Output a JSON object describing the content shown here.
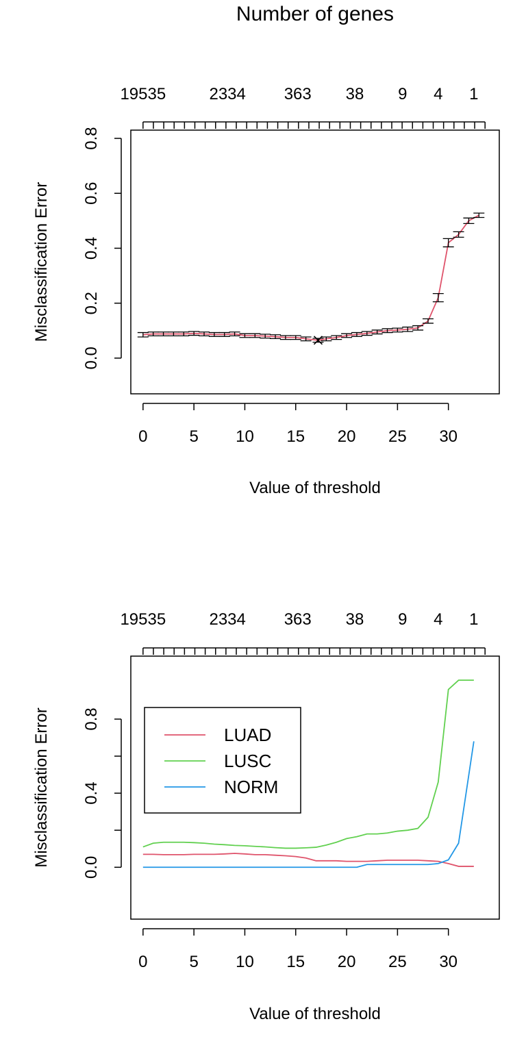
{
  "figure_title": "Number of genes",
  "chart_data": [
    {
      "type": "line",
      "title": "",
      "xlabel": "Value of threshold",
      "ylabel": "Misclassification Error",
      "top_axis_labels": [
        "19535",
        "2334",
        "363",
        "38",
        "9",
        "4",
        "1"
      ],
      "top_axis_positions": [
        0,
        8.3,
        15.2,
        20.8,
        25.5,
        29.0,
        32.5
      ],
      "top_axis_label": "Number of genes",
      "xlim": [
        -1.2,
        35
      ],
      "ylim": [
        -0.13,
        0.83
      ],
      "xticks": [
        0,
        5,
        10,
        15,
        20,
        25,
        30
      ],
      "yticks": [
        0.0,
        0.2,
        0.4,
        0.6,
        0.8
      ],
      "ytick_labels": [
        "0.0",
        "0.2",
        "0.4",
        "0.6",
        "0.8"
      ],
      "grid": false,
      "series": [
        {
          "color": "#DF536B",
          "x": [
            0,
            1,
            2,
            3,
            4,
            5,
            6,
            7,
            8,
            9,
            10,
            11,
            12,
            13,
            14,
            15,
            16,
            17.2,
            18,
            19,
            20,
            21,
            22,
            23,
            24,
            25,
            26,
            27,
            28,
            29,
            30,
            31,
            32,
            33
          ],
          "y": [
            0.085,
            0.088,
            0.088,
            0.088,
            0.088,
            0.09,
            0.088,
            0.086,
            0.086,
            0.088,
            0.082,
            0.082,
            0.08,
            0.078,
            0.075,
            0.075,
            0.07,
            0.065,
            0.07,
            0.075,
            0.082,
            0.086,
            0.09,
            0.095,
            0.1,
            0.102,
            0.105,
            0.11,
            0.135,
            0.22,
            0.42,
            0.45,
            0.5,
            0.52
          ],
          "err": [
            0.008,
            0.007,
            0.007,
            0.007,
            0.007,
            0.007,
            0.007,
            0.007,
            0.007,
            0.007,
            0.007,
            0.007,
            0.007,
            0.007,
            0.007,
            0.007,
            0.007,
            0.007,
            0.007,
            0.007,
            0.007,
            0.007,
            0.007,
            0.007,
            0.007,
            0.007,
            0.008,
            0.008,
            0.008,
            0.015,
            0.015,
            0.01,
            0.01,
            0.008
          ]
        }
      ],
      "min_marker": {
        "symbol": "x",
        "x": 17.2,
        "y": 0.065
      }
    },
    {
      "type": "line",
      "title": "",
      "xlabel": "Value of threshold",
      "ylabel": "Misclassification Error",
      "top_axis_labels": [
        "19535",
        "2334",
        "363",
        "38",
        "9",
        "4",
        "1"
      ],
      "top_axis_positions": [
        0,
        8.3,
        15.2,
        20.8,
        25.5,
        29.0,
        32.5
      ],
      "xlim": [
        -1.2,
        35
      ],
      "ylim": [
        -0.28,
        1.14
      ],
      "xticks": [
        0,
        5,
        10,
        15,
        20,
        25,
        30
      ],
      "yticks": [
        0.0,
        0.2,
        0.4,
        0.6,
        0.8
      ],
      "ytick_labels": [
        "0.0",
        "",
        "0.4",
        "",
        "0.8"
      ],
      "grid": false,
      "legend_position": "center-left",
      "series": [
        {
          "name": "LUAD",
          "color": "#DF536B",
          "x": [
            0,
            1,
            2,
            3,
            4,
            5,
            6,
            7,
            8,
            9,
            10,
            11,
            12,
            13,
            14,
            15,
            16,
            17,
            18,
            19,
            20,
            21,
            22,
            23,
            24,
            25,
            26,
            27,
            28,
            29,
            30,
            31,
            32.5
          ],
          "y": [
            0.07,
            0.07,
            0.068,
            0.068,
            0.068,
            0.07,
            0.07,
            0.07,
            0.072,
            0.075,
            0.072,
            0.068,
            0.068,
            0.065,
            0.062,
            0.058,
            0.05,
            0.035,
            0.035,
            0.035,
            0.032,
            0.032,
            0.032,
            0.035,
            0.038,
            0.038,
            0.038,
            0.038,
            0.035,
            0.032,
            0.02,
            0.005,
            0.005
          ]
        },
        {
          "name": "LUSC",
          "color": "#61D04F",
          "x": [
            0,
            1,
            2,
            3,
            4,
            5,
            6,
            7,
            8,
            9,
            10,
            11,
            12,
            13,
            14,
            15,
            16,
            17,
            18,
            19,
            20,
            21,
            22,
            23,
            24,
            25,
            26,
            27,
            28,
            29,
            30,
            31,
            32.5
          ],
          "y": [
            0.11,
            0.13,
            0.135,
            0.135,
            0.135,
            0.133,
            0.13,
            0.125,
            0.122,
            0.118,
            0.116,
            0.113,
            0.11,
            0.106,
            0.103,
            0.103,
            0.105,
            0.108,
            0.12,
            0.135,
            0.155,
            0.165,
            0.18,
            0.18,
            0.185,
            0.195,
            0.2,
            0.21,
            0.27,
            0.46,
            0.96,
            1.01,
            1.01
          ]
        },
        {
          "name": "NORM",
          "color": "#2297E6",
          "x": [
            0,
            1,
            2,
            3,
            4,
            5,
            6,
            7,
            8,
            9,
            10,
            11,
            12,
            13,
            14,
            15,
            16,
            17,
            18,
            19,
            20,
            21,
            22,
            23,
            24,
            25,
            26,
            27,
            28,
            29,
            30,
            31,
            32.5
          ],
          "y": [
            0,
            0,
            0,
            0,
            0,
            0,
            0,
            0,
            0,
            0,
            0,
            0,
            0,
            0,
            0,
            0,
            0,
            0,
            0,
            0,
            0,
            0,
            0.015,
            0.015,
            0.015,
            0.015,
            0.015,
            0.015,
            0.015,
            0.02,
            0.04,
            0.13,
            0.68
          ]
        }
      ]
    }
  ]
}
